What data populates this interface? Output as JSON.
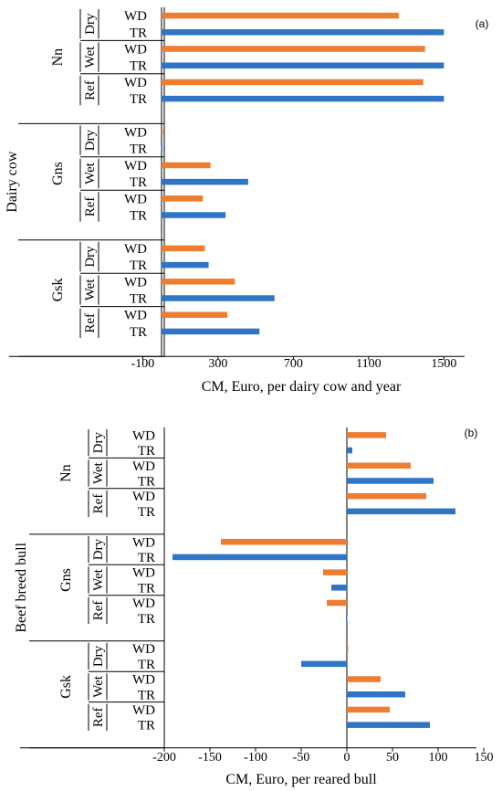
{
  "chart_data": [
    {
      "type": "bar",
      "panel_label": "(a)",
      "xlabel": "CM, Euro, per dairy cow and year",
      "ylabel": "Dairy cow",
      "xlim": [
        -100,
        1500
      ],
      "xticks": [
        -100,
        300,
        700,
        1100,
        1500
      ],
      "orientation": "horizontal",
      "groups": [
        {
          "name": "Nn",
          "subgroups": [
            {
              "name": "Dry",
              "bars": [
                {
                  "label": "WD",
                  "value": 1260
                },
                {
                  "label": "TR",
                  "value": 1500
                }
              ]
            },
            {
              "name": "Wet",
              "bars": [
                {
                  "label": "WD",
                  "value": 1400
                },
                {
                  "label": "TR",
                  "value": 1500
                }
              ]
            },
            {
              "name": "Ref",
              "bars": [
                {
                  "label": "WD",
                  "value": 1390
                },
                {
                  "label": "TR",
                  "value": 1500
                }
              ]
            }
          ]
        },
        {
          "name": "Gns",
          "subgroups": [
            {
              "name": "Dry",
              "bars": [
                {
                  "label": "WD",
                  "value": 3
                },
                {
                  "label": "TR",
                  "value": -2
                }
              ]
            },
            {
              "name": "Wet",
              "bars": [
                {
                  "label": "WD",
                  "value": 260
                },
                {
                  "label": "TR",
                  "value": 460
                }
              ]
            },
            {
              "name": "Ref",
              "bars": [
                {
                  "label": "WD",
                  "value": 220
                },
                {
                  "label": "TR",
                  "value": 340
                }
              ]
            }
          ]
        },
        {
          "name": "Gsk",
          "subgroups": [
            {
              "name": "Dry",
              "bars": [
                {
                  "label": "WD",
                  "value": 230
                },
                {
                  "label": "TR",
                  "value": 250
                }
              ]
            },
            {
              "name": "Wet",
              "bars": [
                {
                  "label": "WD",
                  "value": 390
                },
                {
                  "label": "TR",
                  "value": 600
                }
              ]
            },
            {
              "name": "Ref",
              "bars": [
                {
                  "label": "WD",
                  "value": 350
                },
                {
                  "label": "TR",
                  "value": 520
                }
              ]
            }
          ]
        }
      ]
    },
    {
      "type": "bar",
      "panel_label": "(b)",
      "xlabel": "CM, Euro, per reared bull",
      "ylabel": "Beef breed bull",
      "xlim": [
        -200,
        150
      ],
      "xticks": [
        -200,
        -150,
        -100,
        -50,
        0,
        50,
        100,
        150
      ],
      "orientation": "horizontal",
      "groups": [
        {
          "name": "Nn",
          "subgroups": [
            {
              "name": "Dry",
              "bars": [
                {
                  "label": "WD",
                  "value": 43
                },
                {
                  "label": "TR",
                  "value": 6
                }
              ]
            },
            {
              "name": "Wet",
              "bars": [
                {
                  "label": "WD",
                  "value": 70
                },
                {
                  "label": "TR",
                  "value": 95
                }
              ]
            },
            {
              "name": "Ref",
              "bars": [
                {
                  "label": "WD",
                  "value": 87
                },
                {
                  "label": "TR",
                  "value": 119
                }
              ]
            }
          ]
        },
        {
          "name": "Gns",
          "subgroups": [
            {
              "name": "Dry",
              "bars": [
                {
                  "label": "WD",
                  "value": -138
                },
                {
                  "label": "TR",
                  "value": -191
                }
              ]
            },
            {
              "name": "Wet",
              "bars": [
                {
                  "label": "WD",
                  "value": -26
                },
                {
                  "label": "TR",
                  "value": -17
                }
              ]
            },
            {
              "name": "Ref",
              "bars": [
                {
                  "label": "WD",
                  "value": -22
                },
                {
                  "label": "TR",
                  "value": -1
                }
              ]
            }
          ]
        },
        {
          "name": "Gsk",
          "subgroups": [
            {
              "name": "Dry",
              "bars": [
                {
                  "label": "WD",
                  "value": 0
                },
                {
                  "label": "TR",
                  "value": -50
                }
              ]
            },
            {
              "name": "Wet",
              "bars": [
                {
                  "label": "WD",
                  "value": 37
                },
                {
                  "label": "TR",
                  "value": 64
                }
              ]
            },
            {
              "name": "Ref",
              "bars": [
                {
                  "label": "WD",
                  "value": 47
                },
                {
                  "label": "TR",
                  "value": 91
                }
              ]
            }
          ]
        }
      ]
    }
  ],
  "colors": {
    "WD": "#ED7D31",
    "TR": "#2F75C5",
    "axis": "#000000",
    "text": "#000000"
  }
}
